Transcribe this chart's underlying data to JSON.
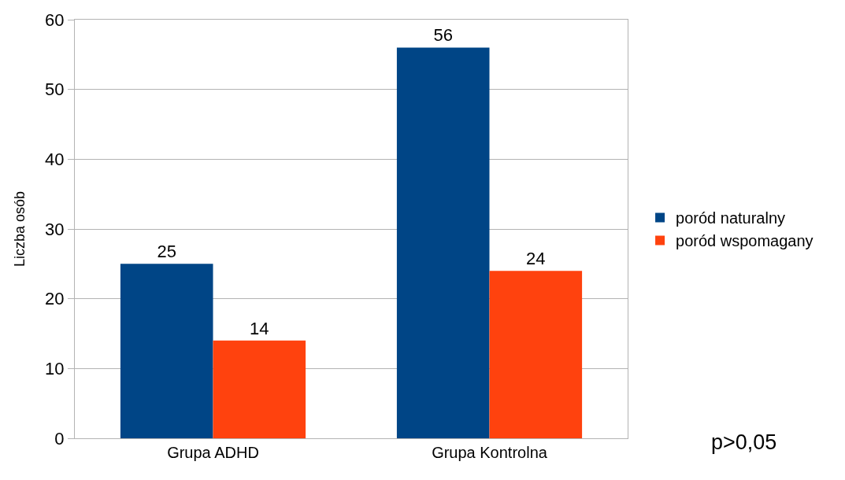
{
  "chart_data": {
    "type": "bar",
    "ylabel": "Liczba osób",
    "categories": [
      "Grupa ADHD",
      "Grupa Kontrolna"
    ],
    "series": [
      {
        "name": "poród naturalny",
        "color": "#004586",
        "values": [
          25,
          56
        ]
      },
      {
        "name": "poród wspomagany",
        "color": "#ff420e",
        "values": [
          14,
          24
        ]
      }
    ],
    "ylim": [
      0,
      60
    ],
    "yticks": [
      0,
      10,
      20,
      30,
      40,
      50,
      60
    ],
    "grid": "y",
    "legend": "right",
    "data_labels": true,
    "annotations": [
      "p>0,05"
    ]
  }
}
